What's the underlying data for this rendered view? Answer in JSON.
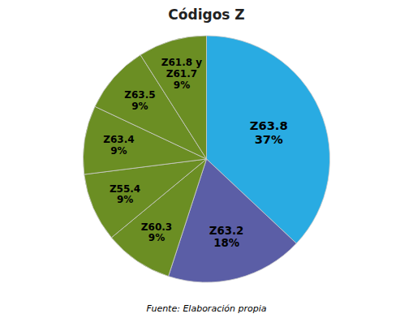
{
  "chart_data": {
    "type": "pie",
    "title": "Códigos Z",
    "categories": [
      "Z63.8",
      "Z63.2",
      "Z60.3",
      "Z55.4",
      "Z63.4",
      "Z63.5",
      "Z61.8 y\nZ61.7"
    ],
    "values": [
      37,
      18,
      9,
      9,
      9,
      9,
      9
    ],
    "value_labels": [
      "37%",
      "18%",
      "9%",
      "9%",
      "9%",
      "9%",
      "9%"
    ],
    "data_labels": true,
    "colors": [
      "#29ABE2",
      "#5B5EA6",
      "#6B8E23",
      "#6B8E23",
      "#6B8E23",
      "#6B8E23",
      "#6B8E23"
    ],
    "annotations": [
      "Fuente: Elaboración propia"
    ]
  }
}
